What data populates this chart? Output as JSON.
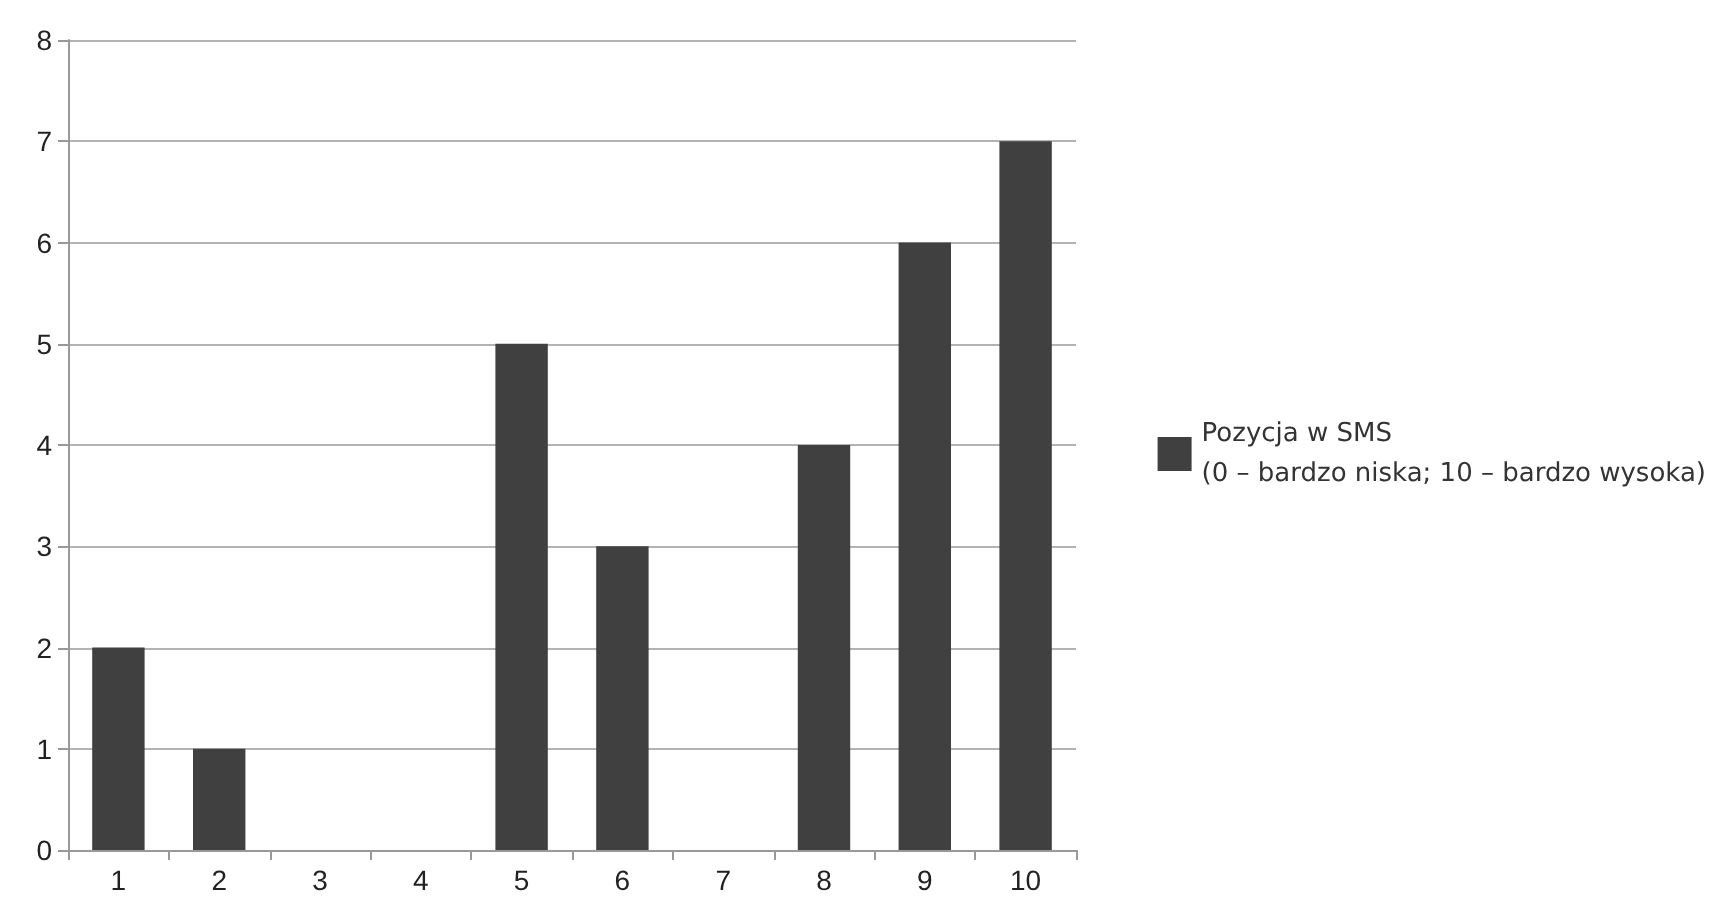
{
  "chart_data": {
    "type": "bar",
    "categories": [
      "1",
      "2",
      "3",
      "4",
      "5",
      "6",
      "7",
      "8",
      "9",
      "10"
    ],
    "series": [
      {
        "name": "Pozycja w SMS\n(0 – bardzo niska; 10 – bardzo wysoka)",
        "color": "#404040",
        "values": [
          2,
          1,
          0,
          0,
          5,
          3,
          0,
          4,
          6,
          7
        ]
      }
    ],
    "ylim": [
      0,
      8
    ],
    "yticks": [
      0,
      1,
      2,
      3,
      4,
      5,
      6,
      7,
      8
    ],
    "grid": "y",
    "legend": "right"
  }
}
